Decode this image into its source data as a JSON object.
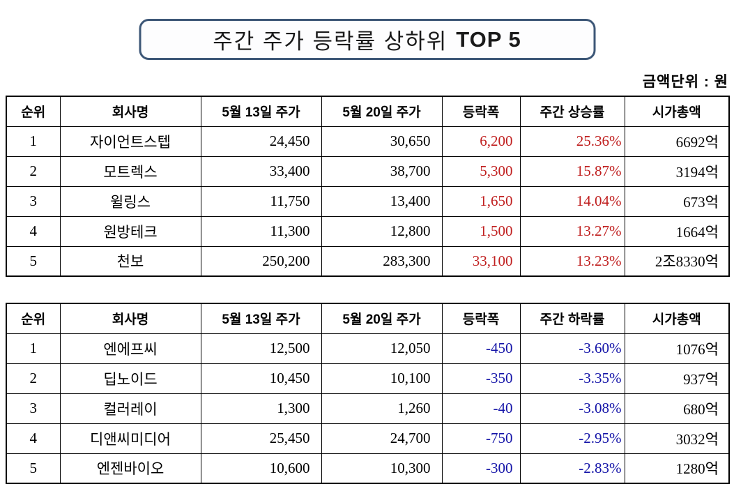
{
  "page": {
    "title": {
      "prefix": "주간 주가 등락률 상하위",
      "highlight": "TOP 5"
    },
    "unit_label": "금액단위 : 원"
  },
  "colors": {
    "gain": "#c01f1f",
    "loss": "#1414a8",
    "title_border": "#3d5777",
    "table_border": "#000000"
  },
  "tables": {
    "gainers": {
      "headers": {
        "rank": "순위",
        "company": "회사명",
        "price_may13": "5월 13일 주가",
        "price_may20": "5월 20일 주가",
        "change": "등락폭",
        "weekly_rate": "주간 상승률",
        "market_cap": "시가총액"
      },
      "rows": [
        {
          "rank": "1",
          "company": "자이언트스텝",
          "price_may13": "24,450",
          "price_may20": "30,650",
          "change": "6,200",
          "weekly_rate": "25.36%",
          "market_cap": "6692억"
        },
        {
          "rank": "2",
          "company": "모트렉스",
          "price_may13": "33,400",
          "price_may20": "38,700",
          "change": "5,300",
          "weekly_rate": "15.87%",
          "market_cap": "3194억"
        },
        {
          "rank": "3",
          "company": "윌링스",
          "price_may13": "11,750",
          "price_may20": "13,400",
          "change": "1,650",
          "weekly_rate": "14.04%",
          "market_cap": "673억"
        },
        {
          "rank": "4",
          "company": "원방테크",
          "price_may13": "11,300",
          "price_may20": "12,800",
          "change": "1,500",
          "weekly_rate": "13.27%",
          "market_cap": "1664억"
        },
        {
          "rank": "5",
          "company": "천보",
          "price_may13": "250,200",
          "price_may20": "283,300",
          "change": "33,100",
          "weekly_rate": "13.23%",
          "market_cap": "2조8330억"
        }
      ]
    },
    "losers": {
      "headers": {
        "rank": "순위",
        "company": "회사명",
        "price_may13": "5월 13일 주가",
        "price_may20": "5월 20일 주가",
        "change": "등락폭",
        "weekly_rate": "주간 하락률",
        "market_cap": "시가총액"
      },
      "rows": [
        {
          "rank": "1",
          "company": "엔에프씨",
          "price_may13": "12,500",
          "price_may20": "12,050",
          "change": "-450",
          "weekly_rate": "-3.60%",
          "market_cap": "1076억"
        },
        {
          "rank": "2",
          "company": "딥노이드",
          "price_may13": "10,450",
          "price_may20": "10,100",
          "change": "-350",
          "weekly_rate": "-3.35%",
          "market_cap": "937억"
        },
        {
          "rank": "3",
          "company": "컬러레이",
          "price_may13": "1,300",
          "price_may20": "1,260",
          "change": "-40",
          "weekly_rate": "-3.08%",
          "market_cap": "680억"
        },
        {
          "rank": "4",
          "company": "디앤씨미디어",
          "price_may13": "25,450",
          "price_may20": "24,700",
          "change": "-750",
          "weekly_rate": "-2.95%",
          "market_cap": "3032억"
        },
        {
          "rank": "5",
          "company": "엔젠바이오",
          "price_may13": "10,600",
          "price_may20": "10,300",
          "change": "-300",
          "weekly_rate": "-2.83%",
          "market_cap": "1280억"
        }
      ]
    }
  }
}
